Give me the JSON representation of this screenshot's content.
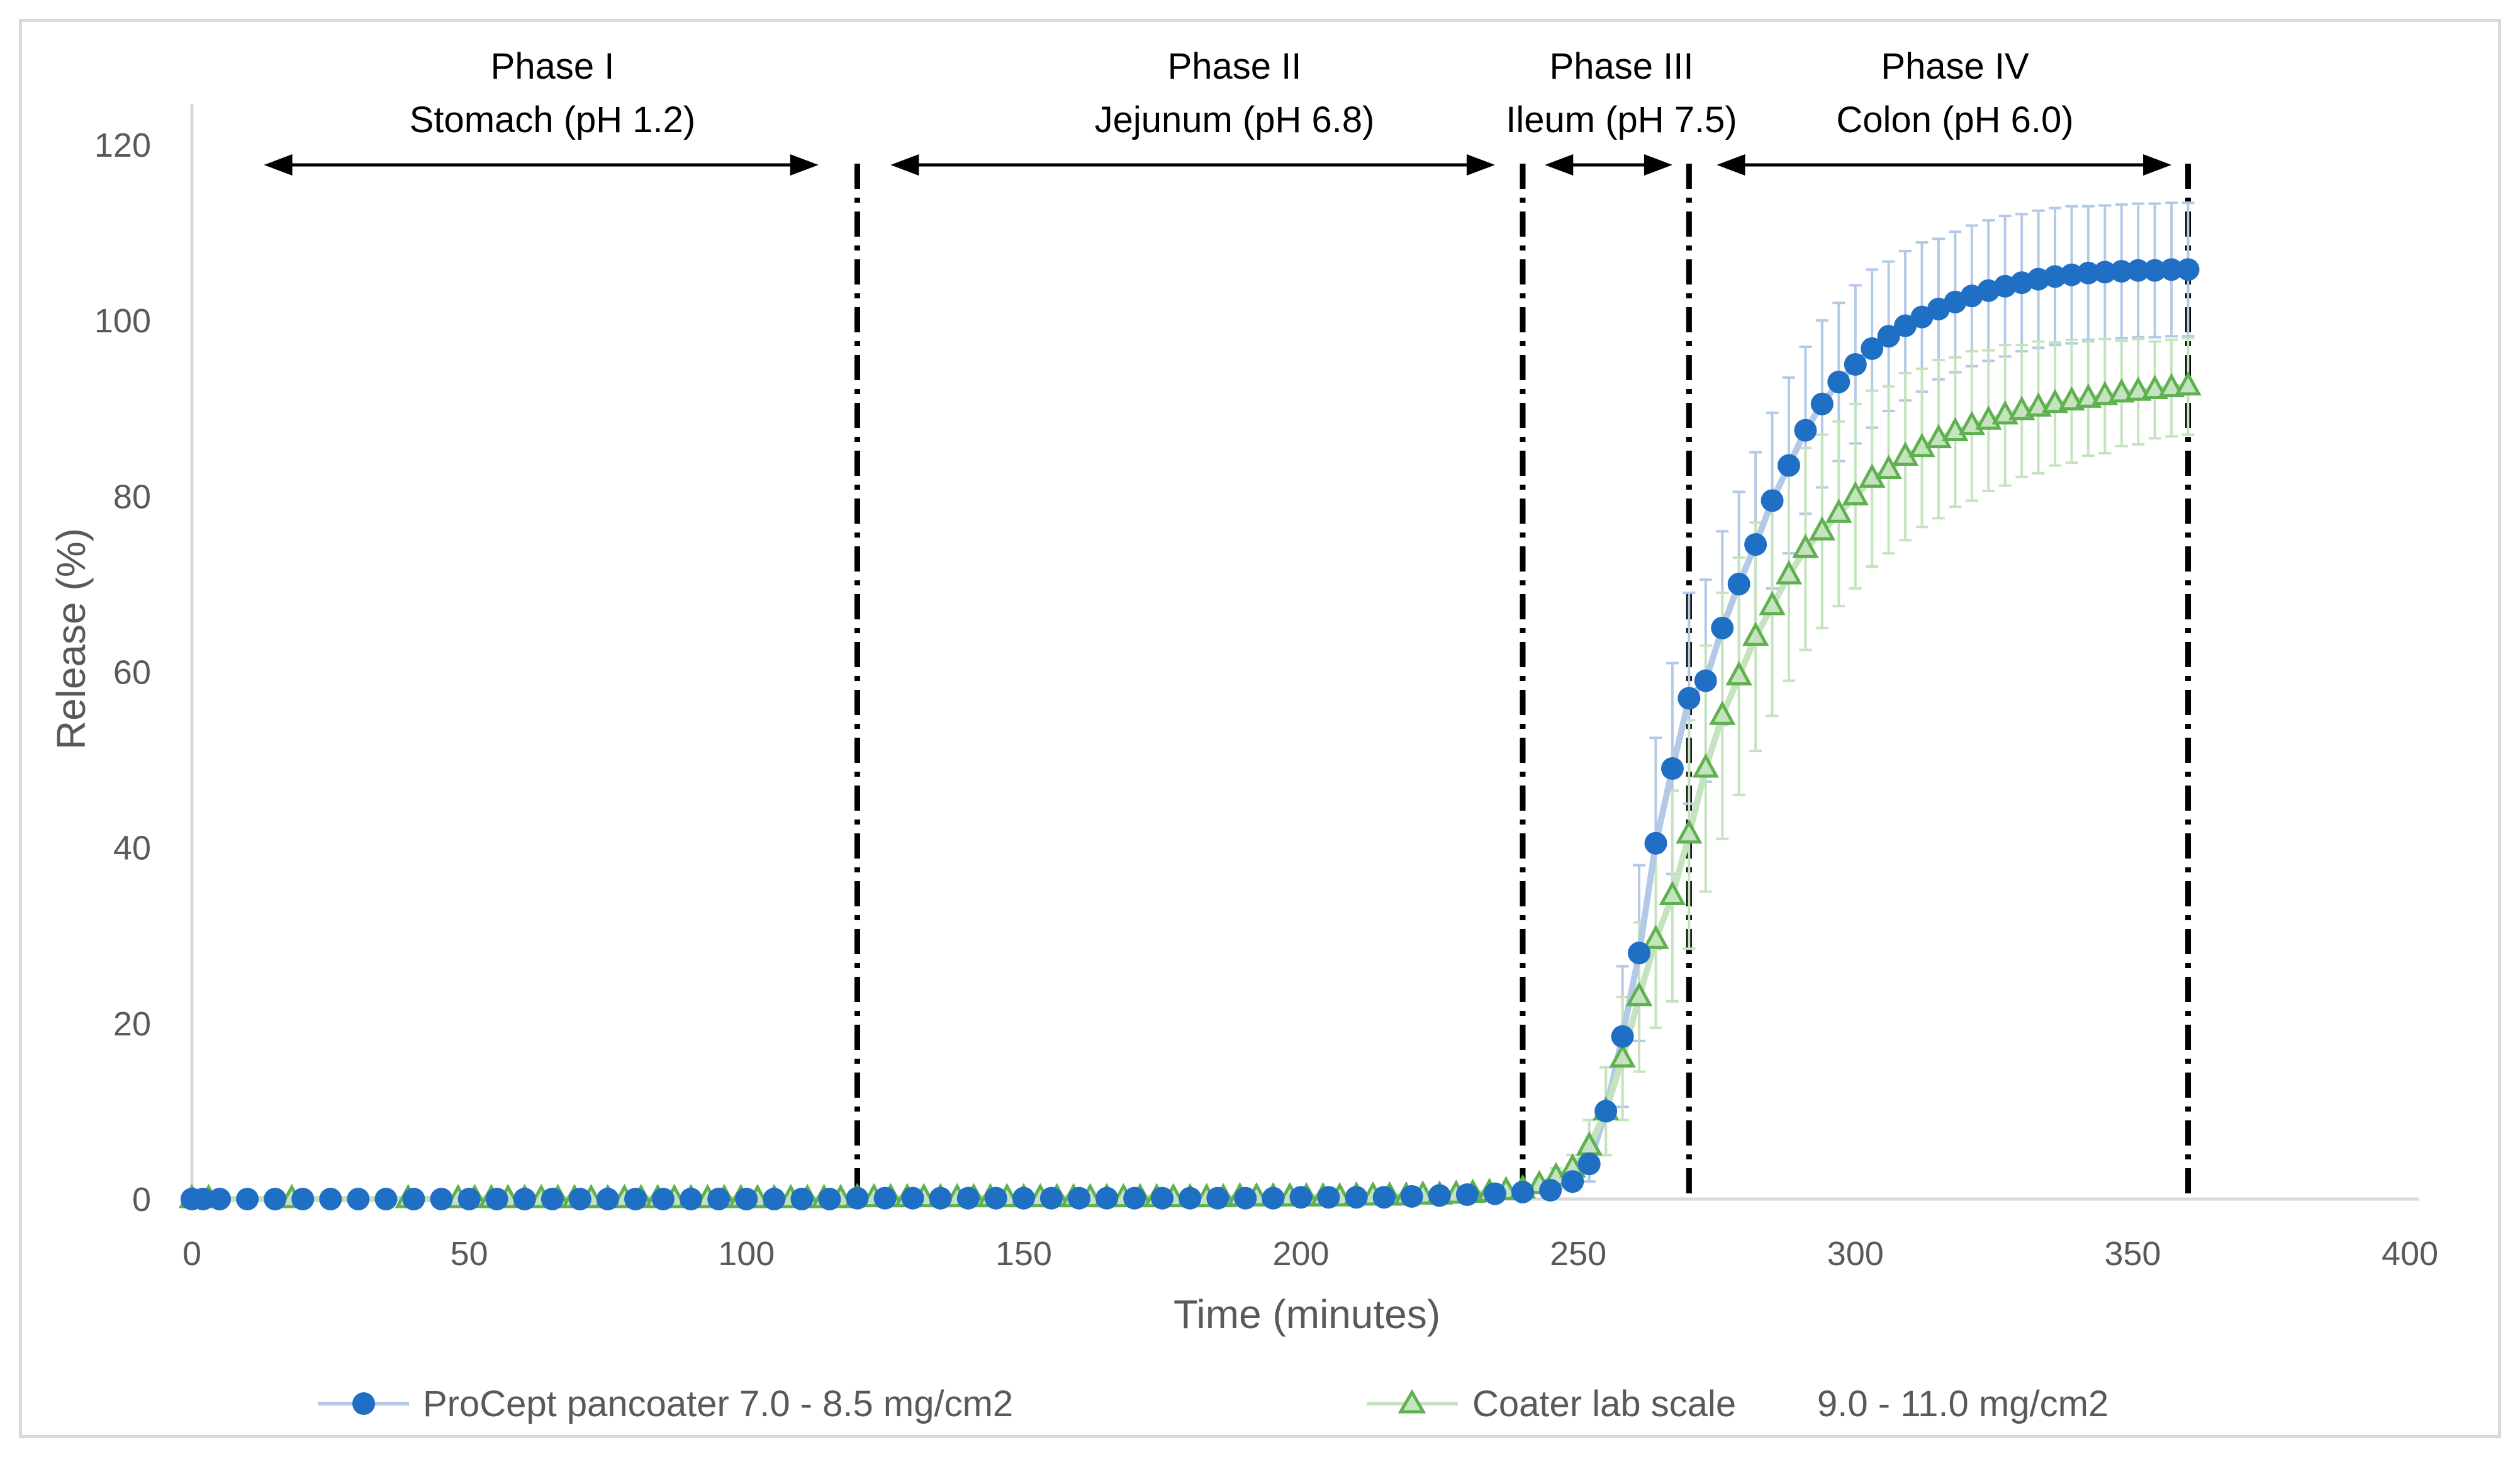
{
  "chart_data": {
    "type": "scatter",
    "title": "",
    "xlabel": "Time (minutes)",
    "ylabel": "Release (%)",
    "xlim": [
      0,
      400
    ],
    "ylim": [
      0,
      120
    ],
    "x_ticks": [
      0,
      50,
      100,
      150,
      200,
      250,
      300,
      350,
      400
    ],
    "y_ticks": [
      0,
      20,
      40,
      60,
      80,
      100,
      120
    ],
    "grid": false,
    "legend_position": "bottom",
    "phase_boundaries": [
      120,
      240,
      270,
      360
    ],
    "phases": [
      {
        "name": "Phase I",
        "region": "Stomach (pH 1.2)",
        "arrow_from": 13,
        "arrow_to": 113
      },
      {
        "name": "Phase II",
        "region": "Jejunum (pH 6.8)",
        "arrow_from": 126,
        "arrow_to": 235
      },
      {
        "name": "Phase III",
        "region": "Ileum (pH 7.5)",
        "arrow_from": 244,
        "arrow_to": 267
      },
      {
        "name": "Phase IV",
        "region": "Colon (pH 6.0)",
        "arrow_from": 275,
        "arrow_to": 357
      }
    ],
    "series": [
      {
        "name": "ProCept pancoater 7.0 - 8.5 mg/cm2",
        "color": "#1f6fc5",
        "line_color": "#b4c9e6",
        "marker": "circle",
        "x": [
          0,
          2,
          5,
          10,
          15,
          20,
          25,
          30,
          35,
          40,
          45,
          50,
          55,
          60,
          65,
          70,
          75,
          80,
          85,
          90,
          95,
          100,
          105,
          110,
          115,
          120,
          125,
          130,
          135,
          140,
          145,
          150,
          155,
          160,
          165,
          170,
          175,
          180,
          185,
          190,
          195,
          200,
          205,
          210,
          215,
          220,
          225,
          230,
          235,
          240,
          245,
          249,
          252,
          255,
          258,
          261,
          264,
          267,
          270,
          273,
          276,
          279,
          282,
          285,
          288,
          291,
          294,
          297,
          300,
          303,
          306,
          309,
          312,
          315,
          318,
          321,
          324,
          327,
          330,
          333,
          336,
          339,
          342,
          345,
          348,
          351,
          354,
          357,
          360
        ],
        "y": [
          0,
          0,
          0,
          0,
          0,
          0,
          0,
          0,
          0,
          0,
          0,
          0,
          0,
          0,
          0,
          0,
          0,
          0,
          0,
          0,
          0,
          0,
          0,
          0,
          0,
          0.1,
          0.1,
          0.1,
          0.1,
          0.1,
          0.1,
          0.1,
          0.1,
          0.1,
          0.1,
          0.1,
          0.1,
          0.1,
          0.1,
          0.1,
          0.1,
          0.2,
          0.2,
          0.2,
          0.2,
          0.3,
          0.4,
          0.5,
          0.6,
          0.8,
          1.0,
          2.0,
          4.0,
          10.0,
          18.5,
          28.0,
          40.5,
          49.0,
          57.0,
          59.0,
          65.0,
          70.0,
          74.5,
          79.5,
          83.5,
          87.5,
          90.5,
          93.0,
          95.0,
          96.8,
          98.2,
          99.4,
          100.4,
          101.3,
          102.1,
          102.8,
          103.4,
          103.9,
          104.3,
          104.7,
          105.0,
          105.2,
          105.4,
          105.5,
          105.6,
          105.7,
          105.7,
          105.8,
          105.8
        ],
        "error": [
          0,
          0,
          0,
          0,
          0,
          0,
          0,
          0,
          0,
          0,
          0,
          0,
          0,
          0,
          0,
          0,
          0,
          0,
          0,
          0,
          0,
          0,
          0,
          0,
          0,
          0,
          0,
          0,
          0,
          0,
          0,
          0,
          0,
          0,
          0,
          0,
          0,
          0,
          0,
          0,
          0,
          0,
          0,
          0,
          0,
          0,
          0.2,
          0.2,
          0.3,
          0.4,
          0.6,
          1.0,
          2.0,
          5.0,
          8.0,
          10.0,
          12.0,
          12.0,
          12.0,
          11.5,
          11.0,
          10.5,
          10.5,
          10.0,
          10.0,
          9.5,
          9.5,
          9.0,
          9.0,
          9.0,
          8.5,
          8.5,
          8.5,
          8.0,
          8.0,
          8.0,
          8.0,
          8.0,
          7.8,
          7.8,
          7.8,
          7.8,
          7.6,
          7.6,
          7.6,
          7.6,
          7.6,
          7.6,
          7.6
        ]
      },
      {
        "name": "Coater lab scale 9.0 - 11.0 mg/cm2",
        "color": "#5fb14f",
        "line_color": "#c6e3bf",
        "marker": "triangle",
        "x": [
          0,
          3,
          18,
          39,
          48,
          51,
          54,
          57,
          60,
          63,
          66,
          69,
          72,
          75,
          78,
          81,
          84,
          87,
          90,
          93,
          96,
          99,
          102,
          105,
          108,
          111,
          114,
          117,
          120,
          123,
          126,
          129,
          132,
          135,
          138,
          141,
          144,
          147,
          150,
          153,
          156,
          159,
          162,
          165,
          168,
          171,
          174,
          177,
          180,
          183,
          186,
          189,
          192,
          195,
          198,
          201,
          204,
          207,
          210,
          213,
          216,
          219,
          222,
          225,
          228,
          231,
          234,
          237,
          240,
          243,
          246,
          249,
          252,
          255,
          258,
          261,
          264,
          267,
          270,
          273,
          276,
          279,
          282,
          285,
          288,
          291,
          294,
          297,
          300,
          303,
          306,
          309,
          312,
          315,
          318,
          321,
          324,
          327,
          330,
          333,
          336,
          339,
          342,
          345,
          348,
          351,
          354,
          357,
          360
        ],
        "y": [
          0,
          0,
          0,
          0,
          0,
          0,
          0,
          0,
          0,
          0,
          0,
          0,
          0,
          0,
          0,
          0,
          0,
          0,
          0,
          0,
          0,
          0,
          0,
          0,
          0,
          0,
          0,
          0,
          0.1,
          0.1,
          0.1,
          0.1,
          0.1,
          0.1,
          0.1,
          0.1,
          0.1,
          0.1,
          0.1,
          0.1,
          0.1,
          0.1,
          0.1,
          0.1,
          0.1,
          0.1,
          0.1,
          0.1,
          0.1,
          0.1,
          0.1,
          0.2,
          0.2,
          0.2,
          0.2,
          0.2,
          0.2,
          0.2,
          0.3,
          0.3,
          0.3,
          0.3,
          0.4,
          0.4,
          0.5,
          0.6,
          0.7,
          0.9,
          1.1,
          1.6,
          2.5,
          3.5,
          6.0,
          10.0,
          16.0,
          23.0,
          29.5,
          34.5,
          41.5,
          49.0,
          55.0,
          59.5,
          64.0,
          67.5,
          71.0,
          74.0,
          76.0,
          78.0,
          80.0,
          82.0,
          83.0,
          84.5,
          85.5,
          86.5,
          87.3,
          88.0,
          88.6,
          89.2,
          89.7,
          90.1,
          90.5,
          90.8,
          91.1,
          91.4,
          91.7,
          91.9,
          92.1,
          92.3,
          92.5
        ],
        "error": [
          0,
          0,
          0,
          0,
          0,
          0,
          0,
          0,
          0,
          0,
          0,
          0,
          0,
          0,
          0,
          0,
          0,
          0,
          0,
          0,
          0,
          0,
          0,
          0,
          0,
          0,
          0,
          0,
          0,
          0,
          0,
          0,
          0,
          0,
          0,
          0,
          0,
          0,
          0,
          0,
          0,
          0,
          0,
          0,
          0,
          0,
          0,
          0,
          0,
          0,
          0,
          0,
          0,
          0,
          0,
          0,
          0,
          0,
          0,
          0,
          0,
          0,
          0,
          0,
          0,
          0.2,
          0.2,
          0.3,
          0.4,
          0.6,
          1.0,
          1.5,
          3.0,
          5.0,
          7.0,
          8.5,
          10.0,
          12.0,
          13.0,
          14.0,
          14.0,
          13.5,
          13.0,
          12.5,
          12.0,
          11.5,
          11.0,
          10.5,
          10.5,
          10.0,
          9.5,
          9.5,
          9.0,
          9.0,
          8.5,
          8.5,
          8.0,
          8.0,
          7.5,
          7.5,
          7.0,
          7.0,
          6.5,
          6.5,
          6.0,
          6.0,
          5.5,
          5.5,
          5.5
        ]
      }
    ]
  }
}
